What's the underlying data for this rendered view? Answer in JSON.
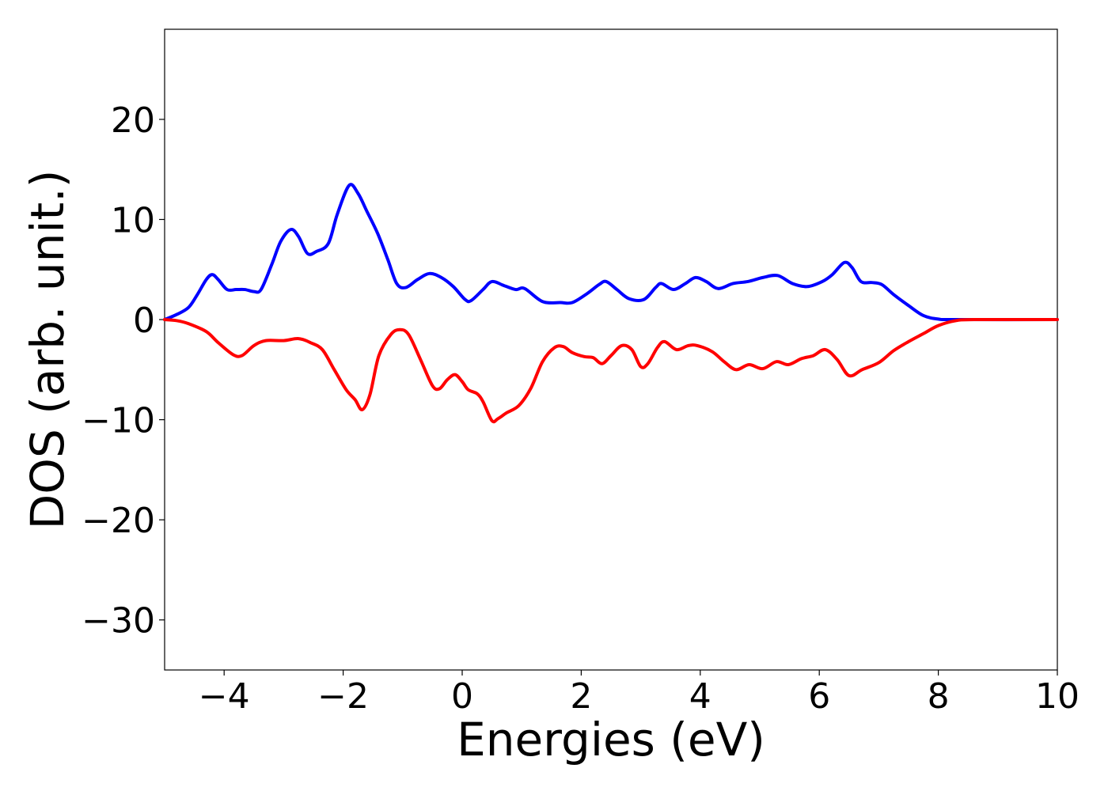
{
  "chart_data": {
    "type": "line",
    "title": "",
    "xlabel": "Energies (eV)",
    "ylabel": "DOS (arb. unit.)",
    "xlim": [
      -5,
      10
    ],
    "ylim": [
      -35,
      29
    ],
    "xticks": [
      -4,
      -2,
      0,
      2,
      4,
      6,
      8,
      10
    ],
    "yticks": [
      -30,
      -20,
      -10,
      0,
      10,
      20
    ],
    "grid": false,
    "legend": "none",
    "series": [
      {
        "color": "#0000ff",
        "points": [
          [
            -5.0,
            0.0
          ],
          [
            -4.8,
            0.5
          ],
          [
            -4.6,
            1.2
          ],
          [
            -4.45,
            2.5
          ],
          [
            -4.3,
            4.0
          ],
          [
            -4.2,
            4.5
          ],
          [
            -4.1,
            4.0
          ],
          [
            -3.95,
            3.0
          ],
          [
            -3.8,
            3.0
          ],
          [
            -3.65,
            3.0
          ],
          [
            -3.5,
            2.8
          ],
          [
            -3.38,
            3.0
          ],
          [
            -3.2,
            5.5
          ],
          [
            -3.05,
            7.8
          ],
          [
            -2.88,
            9.0
          ],
          [
            -2.75,
            8.3
          ],
          [
            -2.6,
            6.6
          ],
          [
            -2.45,
            6.8
          ],
          [
            -2.25,
            7.6
          ],
          [
            -2.1,
            10.5
          ],
          [
            -1.9,
            13.4
          ],
          [
            -1.75,
            12.6
          ],
          [
            -1.6,
            10.8
          ],
          [
            -1.42,
            8.6
          ],
          [
            -1.25,
            6.0
          ],
          [
            -1.1,
            3.6
          ],
          [
            -0.95,
            3.2
          ],
          [
            -0.75,
            4.0
          ],
          [
            -0.55,
            4.6
          ],
          [
            -0.35,
            4.2
          ],
          [
            -0.15,
            3.3
          ],
          [
            0.05,
            2.0
          ],
          [
            0.15,
            1.9
          ],
          [
            0.35,
            3.0
          ],
          [
            0.5,
            3.8
          ],
          [
            0.7,
            3.4
          ],
          [
            0.9,
            3.0
          ],
          [
            1.05,
            3.1
          ],
          [
            1.35,
            1.8
          ],
          [
            1.65,
            1.7
          ],
          [
            1.85,
            1.7
          ],
          [
            2.1,
            2.6
          ],
          [
            2.3,
            3.5
          ],
          [
            2.42,
            3.8
          ],
          [
            2.6,
            3.0
          ],
          [
            2.8,
            2.1
          ],
          [
            3.05,
            2.0
          ],
          [
            3.25,
            3.2
          ],
          [
            3.35,
            3.6
          ],
          [
            3.55,
            3.0
          ],
          [
            3.75,
            3.6
          ],
          [
            3.92,
            4.2
          ],
          [
            4.1,
            3.8
          ],
          [
            4.3,
            3.1
          ],
          [
            4.55,
            3.6
          ],
          [
            4.8,
            3.8
          ],
          [
            5.05,
            4.2
          ],
          [
            5.3,
            4.4
          ],
          [
            5.55,
            3.6
          ],
          [
            5.8,
            3.3
          ],
          [
            6.05,
            3.8
          ],
          [
            6.22,
            4.5
          ],
          [
            6.42,
            5.7
          ],
          [
            6.55,
            5.2
          ],
          [
            6.7,
            3.8
          ],
          [
            6.88,
            3.7
          ],
          [
            7.05,
            3.5
          ],
          [
            7.25,
            2.5
          ],
          [
            7.5,
            1.4
          ],
          [
            7.75,
            0.4
          ],
          [
            8.0,
            0.05
          ],
          [
            8.3,
            0.0
          ],
          [
            10.0,
            0.0
          ]
        ]
      },
      {
        "color": "#ff0000",
        "points": [
          [
            -5.0,
            0.0
          ],
          [
            -4.8,
            -0.1
          ],
          [
            -4.6,
            -0.4
          ],
          [
            -4.3,
            -1.2
          ],
          [
            -4.1,
            -2.3
          ],
          [
            -3.85,
            -3.5
          ],
          [
            -3.7,
            -3.6
          ],
          [
            -3.5,
            -2.6
          ],
          [
            -3.3,
            -2.1
          ],
          [
            -3.0,
            -2.1
          ],
          [
            -2.75,
            -1.9
          ],
          [
            -2.55,
            -2.3
          ],
          [
            -2.35,
            -3.0
          ],
          [
            -2.15,
            -5.0
          ],
          [
            -1.95,
            -7.0
          ],
          [
            -1.8,
            -8.0
          ],
          [
            -1.68,
            -9.0
          ],
          [
            -1.55,
            -7.5
          ],
          [
            -1.4,
            -3.6
          ],
          [
            -1.2,
            -1.5
          ],
          [
            -1.05,
            -1.0
          ],
          [
            -0.9,
            -1.5
          ],
          [
            -0.7,
            -4.0
          ],
          [
            -0.5,
            -6.6
          ],
          [
            -0.38,
            -6.9
          ],
          [
            -0.25,
            -6.0
          ],
          [
            -0.12,
            -5.5
          ],
          [
            0.0,
            -6.2
          ],
          [
            0.1,
            -7.0
          ],
          [
            0.25,
            -7.4
          ],
          [
            0.35,
            -8.2
          ],
          [
            0.5,
            -10.1
          ],
          [
            0.6,
            -9.9
          ],
          [
            0.75,
            -9.3
          ],
          [
            0.95,
            -8.6
          ],
          [
            1.15,
            -6.9
          ],
          [
            1.35,
            -4.2
          ],
          [
            1.55,
            -2.8
          ],
          [
            1.7,
            -2.7
          ],
          [
            1.85,
            -3.3
          ],
          [
            2.05,
            -3.7
          ],
          [
            2.2,
            -3.8
          ],
          [
            2.35,
            -4.4
          ],
          [
            2.5,
            -3.6
          ],
          [
            2.68,
            -2.6
          ],
          [
            2.85,
            -3.0
          ],
          [
            3.0,
            -4.7
          ],
          [
            3.12,
            -4.4
          ],
          [
            3.28,
            -2.8
          ],
          [
            3.4,
            -2.2
          ],
          [
            3.6,
            -3.0
          ],
          [
            3.8,
            -2.6
          ],
          [
            3.95,
            -2.6
          ],
          [
            4.2,
            -3.2
          ],
          [
            4.4,
            -4.2
          ],
          [
            4.6,
            -5.0
          ],
          [
            4.82,
            -4.5
          ],
          [
            5.05,
            -4.9
          ],
          [
            5.28,
            -4.2
          ],
          [
            5.48,
            -4.5
          ],
          [
            5.7,
            -3.9
          ],
          [
            5.9,
            -3.6
          ],
          [
            6.1,
            -3.0
          ],
          [
            6.3,
            -4.0
          ],
          [
            6.5,
            -5.6
          ],
          [
            6.72,
            -5.0
          ],
          [
            7.0,
            -4.3
          ],
          [
            7.25,
            -3.1
          ],
          [
            7.5,
            -2.2
          ],
          [
            7.75,
            -1.4
          ],
          [
            8.0,
            -0.6
          ],
          [
            8.3,
            -0.1
          ],
          [
            8.6,
            0.0
          ],
          [
            10.0,
            0.0
          ]
        ]
      }
    ]
  }
}
